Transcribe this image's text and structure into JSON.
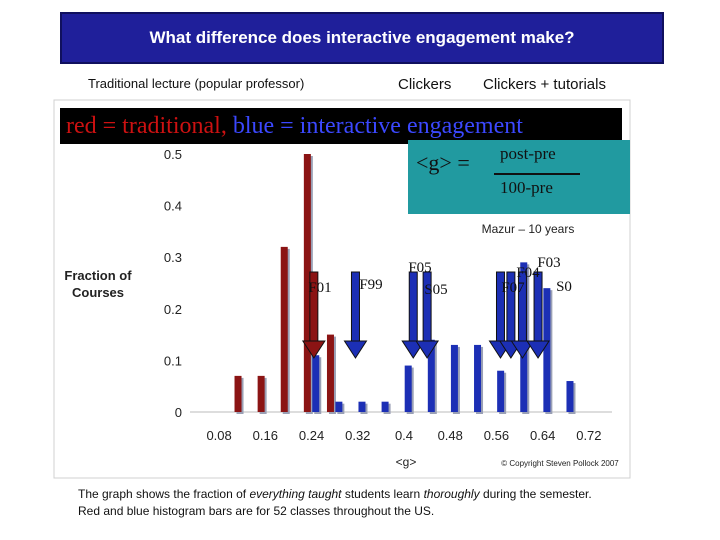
{
  "title": "What difference does interactive engagement make?",
  "headers": {
    "traditional": "Traditional lecture (popular professor)",
    "clickers": "Clickers",
    "clickers_tutorials": "Clickers + tutorials"
  },
  "legend": {
    "red_text": "red = traditional,",
    "blue_text": "blue = interactive engagement"
  },
  "formula": {
    "lhs": "<g> =",
    "numerator": "post-pre",
    "denominator": "100-pre"
  },
  "colors": {
    "title_bg": "#1f1f9a",
    "red_bar": "#8b1414",
    "blue_bar": "#1c2fb5",
    "formula_bg": "#219aa0"
  },
  "chart_data": {
    "type": "bar",
    "xlabel": "<g>",
    "ylabel": "Fraction of Courses",
    "xlim": [
      0.04,
      0.76
    ],
    "ylim": [
      0,
      0.5
    ],
    "x_ticks": [
      "0.08",
      "0.16",
      "0.24",
      "0.32",
      "0.4",
      "0.48",
      "0.56",
      "0.64",
      "0.72"
    ],
    "y_ticks": [
      "0",
      "0.1",
      "0.2",
      "0.3",
      "0.4",
      "0.5"
    ],
    "series": [
      {
        "name": "traditional",
        "color": "#8b1414",
        "x": [
          0.12,
          0.16,
          0.2,
          0.24,
          0.28
        ],
        "values": [
          0.07,
          0.07,
          0.32,
          0.5,
          0.15
        ]
      },
      {
        "name": "interactive engagement",
        "color": "#1c2fb5",
        "x": [
          0.24,
          0.28,
          0.32,
          0.36,
          0.4,
          0.44,
          0.48,
          0.52,
          0.56,
          0.6,
          0.64,
          0.68
        ],
        "values": [
          0.11,
          0.02,
          0.02,
          0.02,
          0.09,
          0.14,
          0.13,
          0.13,
          0.08,
          0.29,
          0.24,
          0.06
        ]
      }
    ],
    "annotations": {
      "subtitle": "Mazur – 10 years",
      "copyright": "© Copyright Steven Pollock 2007",
      "markers": [
        {
          "label": "F01",
          "x": 0.244,
          "color": "#8b1414"
        },
        {
          "label": "F99",
          "x": 0.316,
          "color": "#1c2fb5"
        },
        {
          "label": "F05",
          "x": 0.416,
          "color": "#1c2fb5"
        },
        {
          "label": "S05",
          "x": 0.44,
          "color": "#1c2fb5"
        },
        {
          "label": "F07",
          "x": 0.567,
          "color": "#1c2fb5"
        },
        {
          "label": "F04",
          "x": 0.585,
          "color": "#1c2fb5"
        },
        {
          "label": "F03",
          "x": 0.605,
          "color": "#1c2fb5"
        },
        {
          "label": "S0",
          "x": 0.632,
          "color": "#1c2fb5"
        }
      ]
    }
  },
  "caption": {
    "line1_pre": "The graph shows the fraction of ",
    "line1_em1": "everything taught",
    "line1_mid": " students learn ",
    "line1_em2": "thoroughly",
    "line1_post": " during the semester.",
    "line2": "Red and blue histogram bars are for 52 classes throughout the US."
  }
}
